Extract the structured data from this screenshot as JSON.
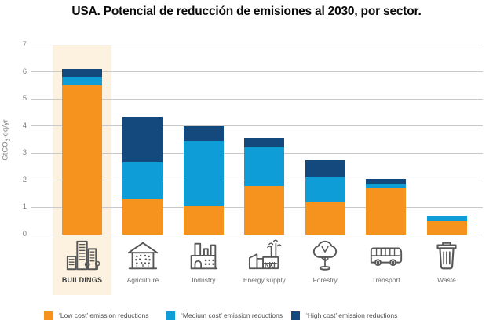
{
  "title": "USA. Potencial de reducción de emisiones al 2030, por sector.",
  "colors": {
    "low_cost": "#F6921E",
    "medium_cost": "#0E9DD6",
    "high_cost": "#14497D",
    "highlight_band": "#FCF2DF",
    "gridline": "#C9C9C9",
    "axis_text": "#7F7F7F"
  },
  "y_axis": {
    "label_pre": "GtCO",
    "label_sub": "2",
    "label_post": "-eq/yr"
  },
  "chart_data": {
    "type": "bar",
    "stacked": true,
    "title": "USA. Potencial de reducción de emisiones al 2030, por sector.",
    "ylabel": "GtCO2-eq/yr",
    "xlabel": "",
    "ylim": [
      0,
      7
    ],
    "yticks": [
      0,
      1,
      2,
      3,
      4,
      5,
      6,
      7
    ],
    "grid": true,
    "legend_position": "bottom",
    "categories": [
      "BUILDINGS",
      "Agriculture",
      "Industry",
      "Energy supply",
      "Forestry",
      "Transport",
      "Waste"
    ],
    "icons": [
      "buildings-icon",
      "agriculture-icon",
      "industry-icon",
      "energy-supply-icon",
      "forestry-icon",
      "transport-icon",
      "waste-icon"
    ],
    "highlighted_category": "BUILDINGS",
    "series": [
      {
        "name": "‘Low cost’ emission reductions",
        "color": "#F6921E",
        "values": [
          5.5,
          1.3,
          1.05,
          1.8,
          1.2,
          1.7,
          0.5
        ]
      },
      {
        "name": "‘Medium cost’ emission reductions",
        "color": "#0E9DD6",
        "values": [
          0.3,
          1.35,
          2.4,
          1.4,
          0.9,
          0.15,
          0.2
        ]
      },
      {
        "name": "‘High cost’ emission reductions",
        "color": "#14497D",
        "values": [
          0.3,
          1.7,
          0.55,
          0.35,
          0.65,
          0.2,
          0
        ]
      }
    ],
    "totals": [
      6.1,
      4.35,
      4.0,
      3.55,
      2.75,
      2.05,
      0.7
    ]
  }
}
